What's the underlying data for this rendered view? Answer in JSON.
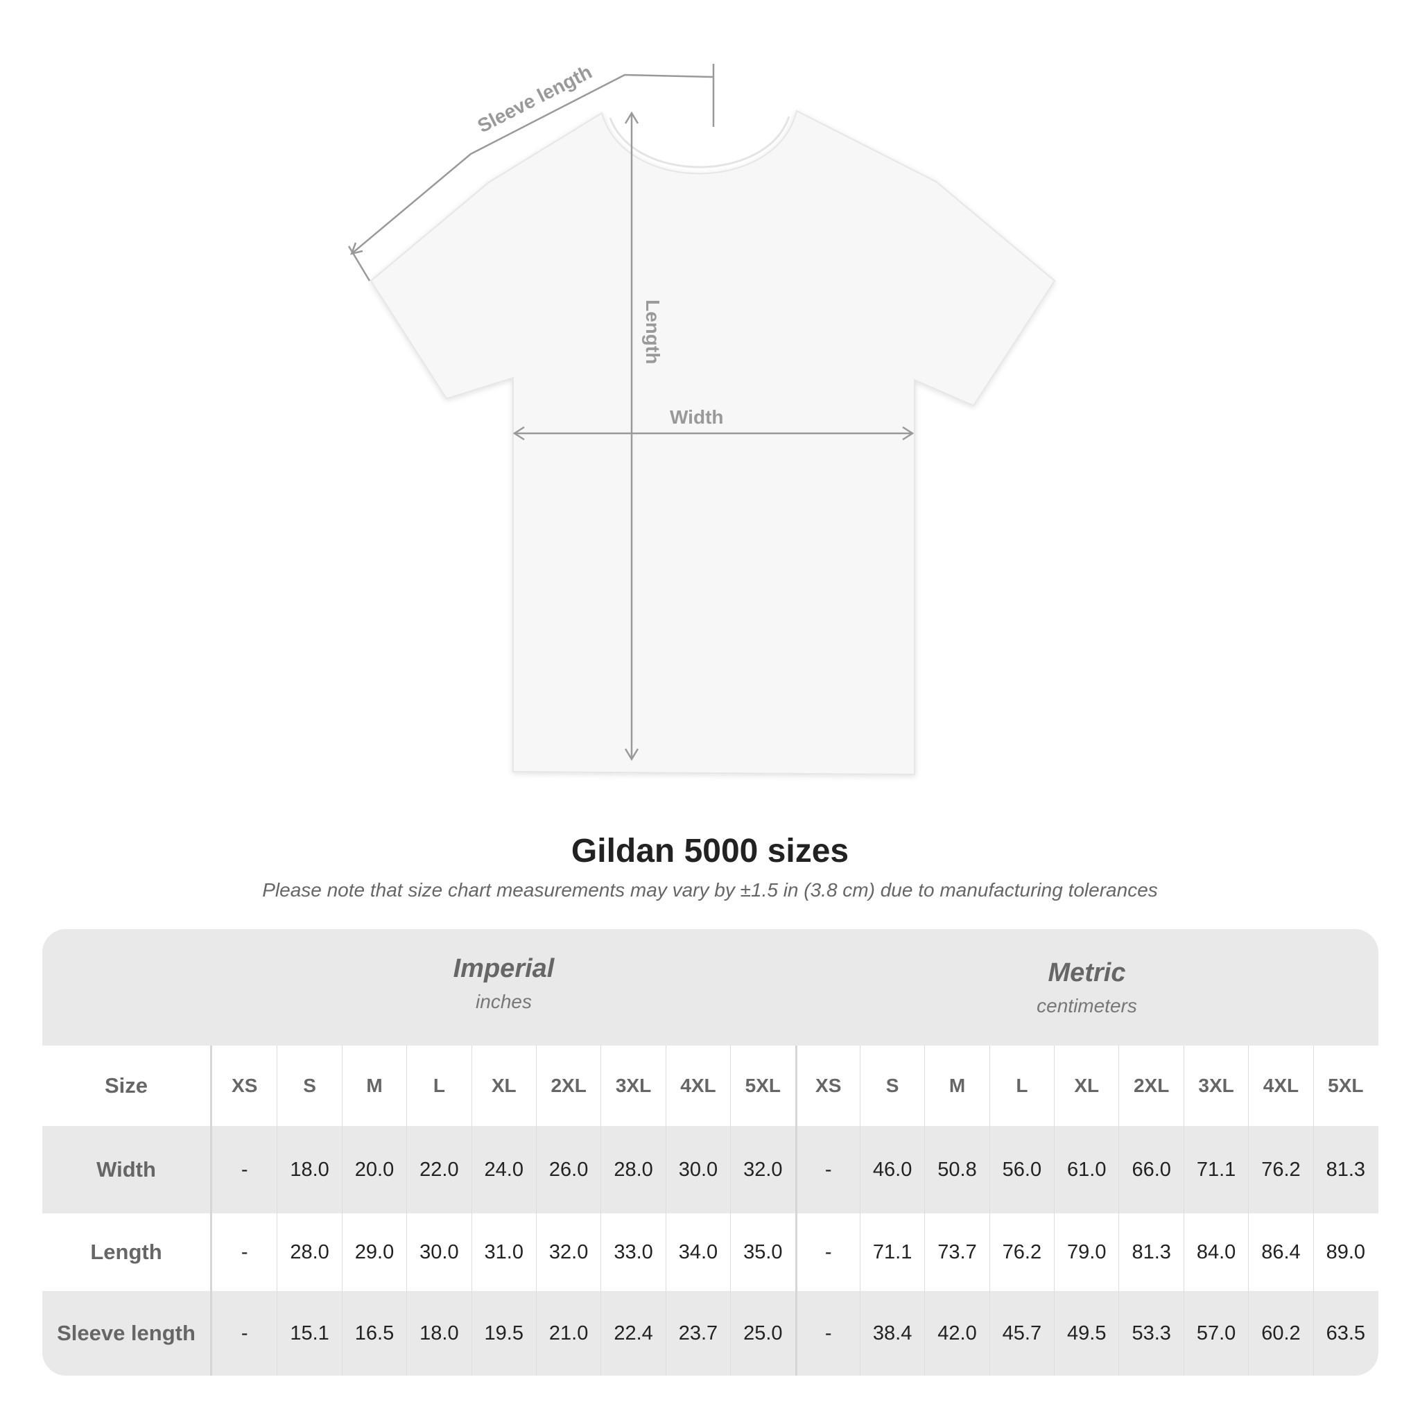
{
  "diagram": {
    "labels": {
      "sleeve": "Sleeve length",
      "length": "Length",
      "width": "Width"
    },
    "line_color": "#999999"
  },
  "title": "Gildan 5000 sizes",
  "note": "Please note that size chart measurements may vary by ±1.5 in (3.8 cm) due to manufacturing tolerances",
  "table": {
    "imperial": {
      "label": "Imperial",
      "unit": "inches"
    },
    "metric": {
      "label": "Metric",
      "unit": "centimeters"
    },
    "size_label": "Size",
    "sizes": [
      "XS",
      "S",
      "M",
      "L",
      "XL",
      "2XL",
      "3XL",
      "4XL",
      "5XL"
    ],
    "rows": [
      {
        "label": "Width",
        "imperial": [
          "-",
          "18.0",
          "20.0",
          "22.0",
          "24.0",
          "26.0",
          "28.0",
          "30.0",
          "32.0"
        ],
        "metric": [
          "-",
          "46.0",
          "50.8",
          "56.0",
          "61.0",
          "66.0",
          "71.1",
          "76.2",
          "81.3"
        ]
      },
      {
        "label": "Length",
        "imperial": [
          "-",
          "28.0",
          "29.0",
          "30.0",
          "31.0",
          "32.0",
          "33.0",
          "34.0",
          "35.0"
        ],
        "metric": [
          "-",
          "71.1",
          "73.7",
          "76.2",
          "79.0",
          "81.3",
          "84.0",
          "86.4",
          "89.0"
        ]
      },
      {
        "label": "Sleeve length",
        "imperial": [
          "-",
          "15.1",
          "16.5",
          "18.0",
          "19.5",
          "21.0",
          "22.4",
          "23.7",
          "25.0"
        ],
        "metric": [
          "-",
          "38.4",
          "42.0",
          "45.7",
          "49.5",
          "53.3",
          "57.0",
          "60.2",
          "63.5"
        ]
      }
    ]
  }
}
